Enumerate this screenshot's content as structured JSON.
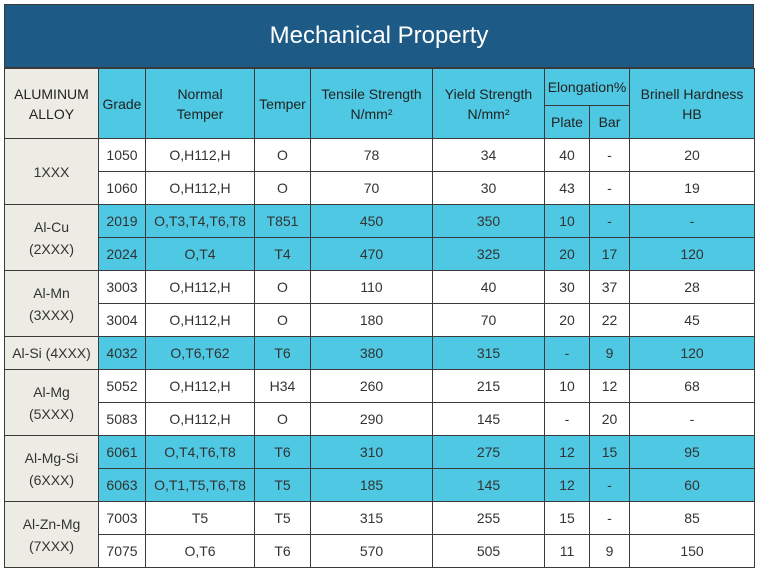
{
  "title": "Mechanical Property",
  "headers": {
    "alloy": [
      "ALUMINUM",
      "ALLOY"
    ],
    "grade": "Grade",
    "normal_temper": [
      "Normal",
      "Temper"
    ],
    "temper": "Temper",
    "tensile": [
      "Tensile Strength",
      "N/mm²"
    ],
    "yield": [
      "Yield Strength",
      "N/mm²"
    ],
    "elongation": "Elongation%",
    "plate": "Plate",
    "bar": "Bar",
    "brinell": [
      "Brinell Hardness",
      "HB"
    ]
  },
  "groups": [
    {
      "alloy": [
        "1XXX"
      ],
      "shade": "white",
      "rows": [
        {
          "grade": "1050",
          "normal_temper": "O,H112,H",
          "temper": "O",
          "tensile": "78",
          "yield": "34",
          "plate": "40",
          "bar": "-",
          "hb": "20"
        },
        {
          "grade": "1060",
          "normal_temper": "O,H112,H",
          "temper": "O",
          "tensile": "70",
          "yield": "30",
          "plate": "43",
          "bar": "-",
          "hb": "19"
        }
      ]
    },
    {
      "alloy": [
        "Al-Cu",
        "(2XXX)"
      ],
      "shade": "blue",
      "rows": [
        {
          "grade": "2019",
          "normal_temper": "O,T3,T4,T6,T8",
          "temper": "T851",
          "tensile": "450",
          "yield": "350",
          "plate": "10",
          "bar": "-",
          "hb": "-"
        },
        {
          "grade": "2024",
          "normal_temper": "O,T4",
          "temper": "T4",
          "tensile": "470",
          "yield": "325",
          "plate": "20",
          "bar": "17",
          "hb": "120"
        }
      ]
    },
    {
      "alloy": [
        "Al-Mn",
        "(3XXX)"
      ],
      "shade": "white",
      "rows": [
        {
          "grade": "3003",
          "normal_temper": "O,H112,H",
          "temper": "O",
          "tensile": "110",
          "yield": "40",
          "plate": "30",
          "bar": "37",
          "hb": "28"
        },
        {
          "grade": "3004",
          "normal_temper": "O,H112,H",
          "temper": "O",
          "tensile": "180",
          "yield": "70",
          "plate": "20",
          "bar": "22",
          "hb": "45"
        }
      ]
    },
    {
      "alloy": [
        "Al-Si (4XXX)"
      ],
      "shade": "blue",
      "rows": [
        {
          "grade": "4032",
          "normal_temper": "O,T6,T62",
          "temper": "T6",
          "tensile": "380",
          "yield": "315",
          "plate": "-",
          "bar": "9",
          "hb": "120"
        }
      ]
    },
    {
      "alloy": [
        "Al-Mg",
        "(5XXX)"
      ],
      "shade": "white",
      "rows": [
        {
          "grade": "5052",
          "normal_temper": "O,H112,H",
          "temper": "H34",
          "tensile": "260",
          "yield": "215",
          "plate": "10",
          "bar": "12",
          "hb": "68"
        },
        {
          "grade": "5083",
          "normal_temper": "O,H112,H",
          "temper": "O",
          "tensile": "290",
          "yield": "145",
          "plate": "-",
          "bar": "20",
          "hb": "-"
        }
      ]
    },
    {
      "alloy": [
        "Al-Mg-Si",
        "(6XXX)"
      ],
      "shade": "blue",
      "rows": [
        {
          "grade": "6061",
          "normal_temper": "O,T4,T6,T8",
          "temper": "T6",
          "tensile": "310",
          "yield": "275",
          "plate": "12",
          "bar": "15",
          "hb": "95"
        },
        {
          "grade": "6063",
          "normal_temper": "O,T1,T5,T6,T8",
          "temper": "T5",
          "tensile": "185",
          "yield": "145",
          "plate": "12",
          "bar": "-",
          "hb": "60"
        }
      ]
    },
    {
      "alloy": [
        "Al-Zn-Mg",
        "(7XXX)"
      ],
      "shade": "white",
      "rows": [
        {
          "grade": "7003",
          "normal_temper": "T5",
          "temper": "T5",
          "tensile": "315",
          "yield": "255",
          "plate": "15",
          "bar": "-",
          "hb": "85"
        },
        {
          "grade": "7075",
          "normal_temper": "O,T6",
          "temper": "T6",
          "tensile": "570",
          "yield": "505",
          "plate": "11",
          "bar": "9",
          "hb": "150"
        }
      ]
    }
  ],
  "colors": {
    "title_bg": "#1d5a86",
    "header_bg": "#4ec8e3",
    "alloy_bg": "#ecebe4",
    "border": "#3a3a3a"
  }
}
